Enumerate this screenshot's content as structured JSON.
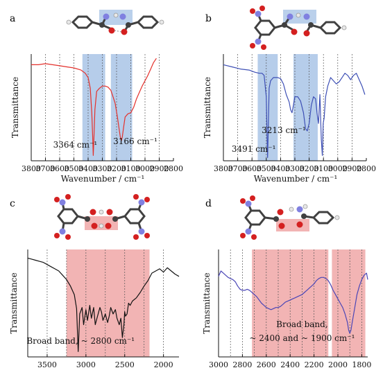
{
  "colors": {
    "red": "#e4302b",
    "blue": "#3d4fb5",
    "black": "#111111",
    "purple": "#4a46b6",
    "blue_band": "#a9c4e6",
    "red_band": "#f0a7a7",
    "carbon": "#404040",
    "hydrogen": "#e8e8e8",
    "oxygen": "#d42020",
    "nitrogen": "#8080e0"
  },
  "chart_data": [
    {
      "type": "line",
      "panel_label": "a",
      "title": "",
      "xlabel": "Wavenumber / cm⁻¹",
      "ylabel": "Transmittance",
      "xlim": [
        3800,
        2800
      ],
      "x_reversed": true,
      "x_ticks": [
        3800,
        3700,
        3600,
        3500,
        3400,
        3300,
        3200,
        3100,
        3000,
        2900,
        2800
      ],
      "dashed_gridlines_x": [
        3700,
        3600,
        3500,
        3400,
        3300,
        3200,
        3100,
        3000,
        2900
      ],
      "ylim": [
        0,
        1
      ],
      "line_color": "red",
      "bands": [
        {
          "range": [
            3440,
            3280
          ],
          "color": "blue_band"
        },
        {
          "range": [
            3240,
            3090
          ],
          "color": "blue_band"
        }
      ],
      "annotations": [
        {
          "text": "3364 cm⁻¹",
          "x": 3364
        },
        {
          "text": "3166 cm⁻¹",
          "x": 3166
        }
      ],
      "series": [
        {
          "x": [
            3800,
            3750,
            3700,
            3650,
            3600,
            3550,
            3500,
            3450,
            3420,
            3400,
            3385,
            3374,
            3368,
            3364,
            3360,
            3352,
            3340,
            3320,
            3300,
            3280,
            3260,
            3240,
            3225,
            3210,
            3195,
            3180,
            3172,
            3166,
            3160,
            3150,
            3140,
            3120,
            3100,
            3080,
            3060,
            3040,
            3020,
            3000,
            2980,
            2960,
            2940,
            2920
          ],
          "y": [
            0.9,
            0.9,
            0.91,
            0.9,
            0.89,
            0.88,
            0.87,
            0.85,
            0.82,
            0.78,
            0.68,
            0.45,
            0.22,
            0.05,
            0.18,
            0.48,
            0.65,
            0.68,
            0.7,
            0.7,
            0.69,
            0.66,
            0.6,
            0.54,
            0.42,
            0.28,
            0.21,
            0.19,
            0.22,
            0.32,
            0.41,
            0.44,
            0.45,
            0.5,
            0.58,
            0.64,
            0.7,
            0.75,
            0.8,
            0.86,
            0.92,
            0.96
          ]
        }
      ]
    },
    {
      "type": "line",
      "panel_label": "b",
      "title": "",
      "xlabel": "Wavenumber / cm⁻¹",
      "ylabel": "Transmittance",
      "xlim": [
        3800,
        2800
      ],
      "x_reversed": true,
      "x_ticks": [
        3800,
        3700,
        3600,
        3500,
        3400,
        3300,
        3200,
        3100,
        3000,
        2900,
        2800
      ],
      "dashed_gridlines_x": [
        3700,
        3600,
        3500,
        3400,
        3300,
        3200,
        3100,
        3000,
        2900
      ],
      "ylim": [
        0,
        1
      ],
      "line_color": "blue",
      "bands": [
        {
          "range": [
            3560,
            3420
          ],
          "color": "blue_band"
        },
        {
          "range": [
            3310,
            3140
          ],
          "color": "blue_band"
        }
      ],
      "annotations": [
        {
          "text": "3491 cm⁻¹",
          "x": 3491
        },
        {
          "text": "3213 cm⁻¹",
          "x": 3213
        }
      ],
      "series": [
        {
          "x": [
            3800,
            3740,
            3680,
            3620,
            3580,
            3550,
            3530,
            3515,
            3500,
            3494,
            3491,
            3487,
            3480,
            3470,
            3450,
            3420,
            3400,
            3380,
            3360,
            3340,
            3330,
            3320,
            3310,
            3300,
            3280,
            3260,
            3240,
            3225,
            3213,
            3200,
            3185,
            3170,
            3155,
            3145,
            3135,
            3125,
            3115,
            3108,
            3102,
            3095,
            3085,
            3070,
            3050,
            3030,
            3010,
            2990,
            2970,
            2950,
            2930,
            2910,
            2890,
            2870,
            2850,
            2830,
            2810
          ],
          "y": [
            0.9,
            0.88,
            0.86,
            0.85,
            0.83,
            0.82,
            0.82,
            0.8,
            0.6,
            0.2,
            0.03,
            0.25,
            0.68,
            0.75,
            0.78,
            0.78,
            0.77,
            0.72,
            0.62,
            0.55,
            0.48,
            0.45,
            0.52,
            0.6,
            0.6,
            0.56,
            0.45,
            0.3,
            0.28,
            0.35,
            0.52,
            0.6,
            0.58,
            0.45,
            0.35,
            0.62,
            0.2,
            0.05,
            0.35,
            0.4,
            0.6,
            0.7,
            0.78,
            0.75,
            0.72,
            0.74,
            0.78,
            0.82,
            0.8,
            0.76,
            0.8,
            0.82,
            0.76,
            0.7,
            0.62
          ]
        }
      ]
    },
    {
      "type": "line",
      "panel_label": "c",
      "title": "",
      "xlabel": "",
      "ylabel": "Transmittance",
      "xlim": [
        3750,
        1800
      ],
      "x_reversed": true,
      "x_ticks": [
        3500,
        3000,
        2500,
        2000
      ],
      "dashed_gridlines_x": [
        3500,
        3250,
        3000,
        2750,
        2500,
        2250,
        2000
      ],
      "ylim": [
        0,
        1
      ],
      "line_color": "black",
      "bands": [
        {
          "range": [
            3250,
            2180
          ],
          "color": "red_band"
        }
      ],
      "annotations": [
        {
          "text": "Broad band, ~ 2800 cm⁻¹",
          "x": 2800
        }
      ],
      "series": [
        {
          "x": [
            3750,
            3700,
            3650,
            3600,
            3550,
            3500,
            3450,
            3400,
            3350,
            3300,
            3250,
            3200,
            3150,
            3120,
            3100,
            3080,
            3050,
            3030,
            3000,
            2980,
            2950,
            2930,
            2900,
            2880,
            2850,
            2820,
            2800,
            2780,
            2750,
            2720,
            2700,
            2680,
            2650,
            2620,
            2600,
            2570,
            2550,
            2530,
            2510,
            2500,
            2490,
            2470,
            2450,
            2430,
            2400,
            2350,
            2300,
            2250,
            2200,
            2150,
            2100,
            2050,
            2000,
            1950,
            1900,
            1850,
            1800
          ],
          "y": [
            0.92,
            0.91,
            0.9,
            0.89,
            0.88,
            0.86,
            0.84,
            0.82,
            0.8,
            0.76,
            0.72,
            0.66,
            0.58,
            0.45,
            0.05,
            0.4,
            0.46,
            0.3,
            0.44,
            0.34,
            0.48,
            0.36,
            0.46,
            0.3,
            0.38,
            0.46,
            0.42,
            0.34,
            0.4,
            0.32,
            0.38,
            0.46,
            0.4,
            0.44,
            0.36,
            0.3,
            0.36,
            0.18,
            0.3,
            0.42,
            0.38,
            0.4,
            0.5,
            0.48,
            0.52,
            0.55,
            0.6,
            0.66,
            0.71,
            0.78,
            0.8,
            0.82,
            0.79,
            0.83,
            0.8,
            0.77,
            0.75
          ]
        }
      ]
    },
    {
      "type": "line",
      "panel_label": "d",
      "title": "",
      "xlabel": "",
      "ylabel": "Transmittance",
      "xlim": [
        3000,
        1750
      ],
      "x_reversed": true,
      "x_ticks": [
        3000,
        2800,
        2600,
        2400,
        2200,
        2000,
        1800
      ],
      "dashed_gridlines_x": [
        2900,
        2800,
        2700,
        2600,
        2500,
        2400,
        2300,
        2200,
        2100,
        2000,
        1900,
        1800
      ],
      "ylim": [
        0,
        1
      ],
      "line_color": "purple",
      "bands": [
        {
          "range": [
            2720,
            2080
          ],
          "color": "red_band"
        },
        {
          "range": [
            2050,
            1770
          ],
          "color": "red_band"
        }
      ],
      "annotations": [
        {
          "text": "Broad band,",
          "x": 2300
        },
        {
          "text": "~ 2400  and ~ 1900 cm⁻¹",
          "x": 2300
        }
      ],
      "series": [
        {
          "x": [
            3000,
            2980,
            2960,
            2940,
            2920,
            2900,
            2880,
            2860,
            2840,
            2820,
            2800,
            2780,
            2760,
            2740,
            2720,
            2700,
            2680,
            2660,
            2640,
            2620,
            2600,
            2580,
            2560,
            2540,
            2520,
            2500,
            2480,
            2460,
            2440,
            2420,
            2400,
            2380,
            2360,
            2340,
            2320,
            2300,
            2280,
            2260,
            2240,
            2220,
            2200,
            2180,
            2160,
            2140,
            2120,
            2100,
            2080,
            2060,
            2040,
            2020,
            2000,
            1980,
            1960,
            1940,
            1920,
            1910,
            1900,
            1890,
            1880,
            1860,
            1840,
            1820,
            1800,
            1780,
            1760,
            1750
          ],
          "y": [
            0.75,
            0.8,
            0.78,
            0.76,
            0.74,
            0.73,
            0.72,
            0.7,
            0.66,
            0.63,
            0.62,
            0.62,
            0.63,
            0.62,
            0.6,
            0.58,
            0.56,
            0.53,
            0.5,
            0.48,
            0.46,
            0.45,
            0.44,
            0.45,
            0.46,
            0.46,
            0.47,
            0.49,
            0.51,
            0.52,
            0.53,
            0.54,
            0.55,
            0.56,
            0.57,
            0.58,
            0.6,
            0.62,
            0.64,
            0.66,
            0.68,
            0.71,
            0.73,
            0.74,
            0.74,
            0.73,
            0.71,
            0.67,
            0.62,
            0.58,
            0.54,
            0.5,
            0.46,
            0.4,
            0.32,
            0.25,
            0.22,
            0.25,
            0.32,
            0.45,
            0.58,
            0.66,
            0.72,
            0.76,
            0.78,
            0.72
          ]
        }
      ]
    }
  ]
}
